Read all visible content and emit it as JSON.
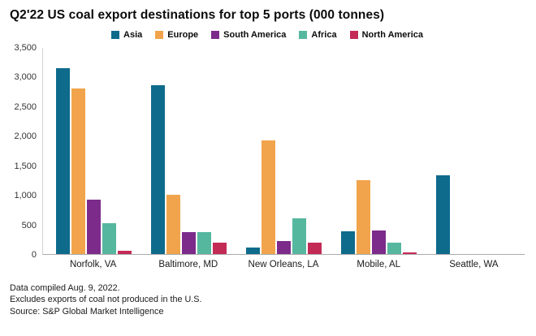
{
  "title": "Q2'22 US coal export destinations for top 5 ports (000 tonnes)",
  "footer": {
    "line1": "Data compiled Aug. 9, 2022.",
    "line2": "Excludes exports of coal not produced in the U.S.",
    "line3": "Source: S&P Global Market Intelligence"
  },
  "chart_data": {
    "type": "bar",
    "title": "Q2'22 US coal export destinations for top 5 ports (000 tonnes)",
    "categories": [
      "Norfolk, VA",
      "Baltimore, MD",
      "New Orleans, LA",
      "Mobile, AL",
      "Seattle, WA"
    ],
    "series": [
      {
        "name": "Asia",
        "color": "#0e6b8c",
        "values": [
          3150,
          2870,
          110,
          390,
          1330
        ]
      },
      {
        "name": "Europe",
        "color": "#f1a44b",
        "values": [
          2810,
          1010,
          1930,
          1250,
          0
        ]
      },
      {
        "name": "South America",
        "color": "#7c2b8b",
        "values": [
          930,
          370,
          220,
          400,
          0
        ]
      },
      {
        "name": "Africa",
        "color": "#56b79f",
        "values": [
          530,
          370,
          610,
          190,
          0
        ]
      },
      {
        "name": "North America",
        "color": "#c32a56",
        "values": [
          60,
          200,
          200,
          30,
          0
        ]
      }
    ],
    "ylim": [
      0,
      3500
    ],
    "ytick_step": 500,
    "ytick_labels": [
      "0",
      "500",
      "1,000",
      "1,500",
      "2,000",
      "2,500",
      "3,000",
      "3,500"
    ],
    "grid": false,
    "legend_position": "top"
  }
}
